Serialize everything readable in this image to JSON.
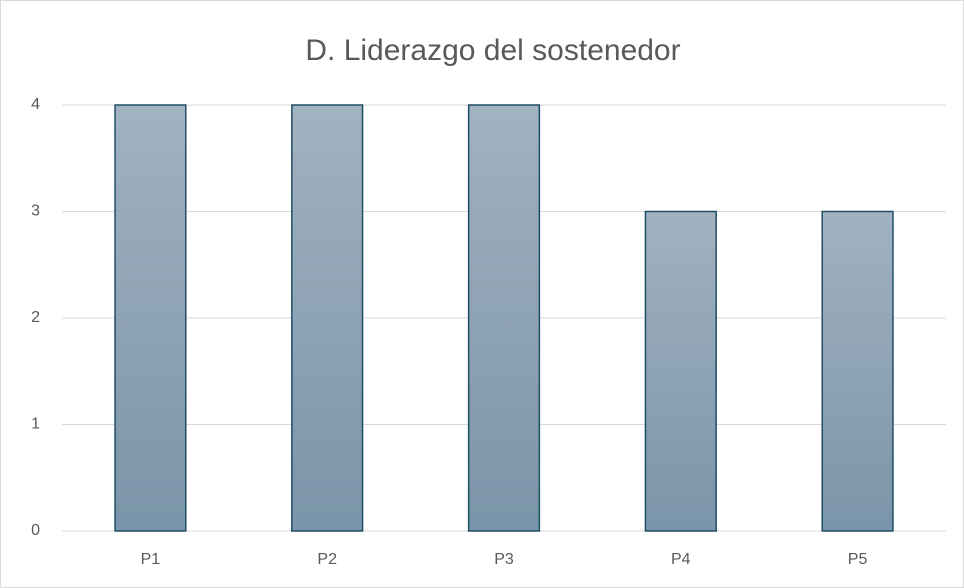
{
  "chart_data": {
    "type": "bar",
    "title": "D. Liderazgo del sostenedor",
    "categories": [
      "P1",
      "P2",
      "P3",
      "P4",
      "P5"
    ],
    "values": [
      4,
      4,
      4,
      3,
      3
    ],
    "color": "#8aa0b2",
    "ylim": [
      0,
      4
    ],
    "yticks": [
      0,
      1,
      2,
      3,
      4
    ],
    "grid": true
  }
}
